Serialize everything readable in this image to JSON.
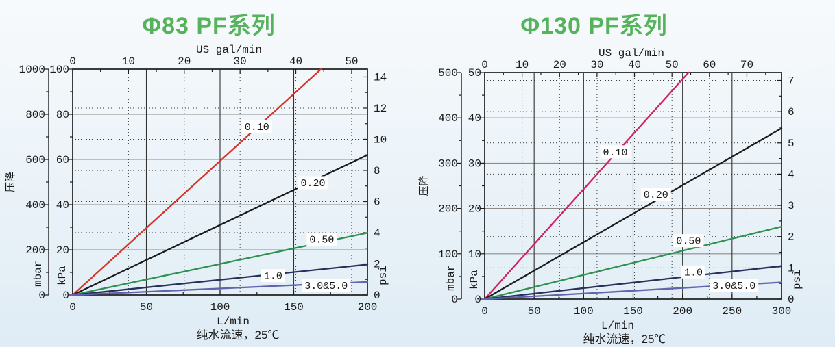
{
  "title_color": "#56b25c",
  "chart_data": [
    {
      "type": "line",
      "title": "Φ83 PF系列",
      "y_axis_title": "压降",
      "caption": "纯水流速，25℃",
      "legend_position": "inline-labels-on-lines",
      "grid": "on",
      "axes": {
        "top": {
          "title": "US gal/min",
          "ticks": [
            0,
            10,
            20,
            30,
            40,
            50
          ],
          "minor_step": 5
        },
        "bottom": {
          "title": "L/min",
          "ticks": [
            0,
            50,
            100,
            150,
            200
          ],
          "minor_step": 25,
          "max": 200
        },
        "left_inner": {
          "title": "kPa",
          "ticks": [
            0,
            20,
            40,
            60,
            80,
            100
          ],
          "minor_step": 10,
          "max": 100
        },
        "left_outer": {
          "title": "mbar",
          "ticks": [
            0,
            200,
            400,
            600,
            800,
            1000
          ],
          "minor_step": 100,
          "max": 1000
        },
        "right": {
          "title": "psi",
          "ticks": [
            0,
            2,
            4,
            6,
            8,
            10,
            12,
            14
          ],
          "minor_step": 1
        }
      },
      "series": [
        {
          "name": "0.10",
          "color": "#d63227",
          "x_lmin": [
            0,
            168.5
          ],
          "y_kpa": [
            0,
            100
          ],
          "label_xy": [
            125,
            74.5
          ]
        },
        {
          "name": "0.20",
          "color": "#1b1b1b",
          "x_lmin": [
            0,
            200
          ],
          "y_kpa": [
            0,
            62
          ],
          "label_xy": [
            163,
            49.7
          ]
        },
        {
          "name": "0.50",
          "color": "#2f9150",
          "x_lmin": [
            0,
            200
          ],
          "y_kpa": [
            0,
            27.5
          ],
          "label_xy": [
            169,
            24.7
          ]
        },
        {
          "name": "1.0",
          "color": "#27305a",
          "x_lmin": [
            0,
            200
          ],
          "y_kpa": [
            0,
            13.5
          ],
          "label_xy": [
            136,
            8.6
          ]
        },
        {
          "name": "3.0&5.0",
          "color": "#6163ae",
          "x_lmin": [
            0,
            200
          ],
          "y_kpa": [
            0,
            5.8
          ],
          "label_xy": [
            172,
            4.2
          ]
        }
      ]
    },
    {
      "type": "line",
      "title": "Φ130 PF系列",
      "y_axis_title": "压降",
      "caption": "纯水流速，25℃",
      "legend_position": "inline-labels-on-lines",
      "grid": "on",
      "axes": {
        "top": {
          "title": "US gal/min",
          "ticks": [
            0,
            10,
            20,
            30,
            40,
            50,
            60,
            70
          ],
          "minor_step": 5
        },
        "bottom": {
          "title": "L/min",
          "ticks": [
            0,
            50,
            100,
            150,
            200,
            250,
            300
          ],
          "minor_step": 25,
          "max": 300
        },
        "left_inner": {
          "title": "kPa",
          "ticks": [
            0,
            10,
            20,
            30,
            40,
            50
          ],
          "minor_step": 5,
          "max": 50
        },
        "left_outer": {
          "title": "mbar",
          "ticks": [
            0,
            100,
            200,
            300,
            400,
            500
          ],
          "minor_step": 50,
          "max": 500
        },
        "right": {
          "title": "psi",
          "ticks": [
            0,
            1,
            2,
            3,
            4,
            5,
            6,
            7
          ],
          "minor_step": 0.5
        }
      },
      "series": [
        {
          "name": "0.10",
          "color": "#d2215f",
          "x_lmin": [
            0,
            206
          ],
          "y_kpa": [
            0,
            50
          ],
          "label_xy": [
            132,
            32.5
          ]
        },
        {
          "name": "0.20",
          "color": "#1b1b1b",
          "x_lmin": [
            0,
            300
          ],
          "y_kpa": [
            0,
            37.7
          ],
          "label_xy": [
            173,
            23.1
          ]
        },
        {
          "name": "0.50",
          "color": "#2f9150",
          "x_lmin": [
            0,
            300
          ],
          "y_kpa": [
            0,
            16
          ],
          "label_xy": [
            206,
            12.9
          ]
        },
        {
          "name": "1.0",
          "color": "#27305a",
          "x_lmin": [
            0,
            300
          ],
          "y_kpa": [
            0,
            7.3
          ],
          "label_xy": [
            211,
            6.0
          ]
        },
        {
          "name": "3.0&5.0",
          "color": "#6163ae",
          "x_lmin": [
            0,
            300
          ],
          "y_kpa": [
            0,
            3.7
          ],
          "label_xy": [
            252,
            3.0
          ]
        }
      ]
    }
  ]
}
